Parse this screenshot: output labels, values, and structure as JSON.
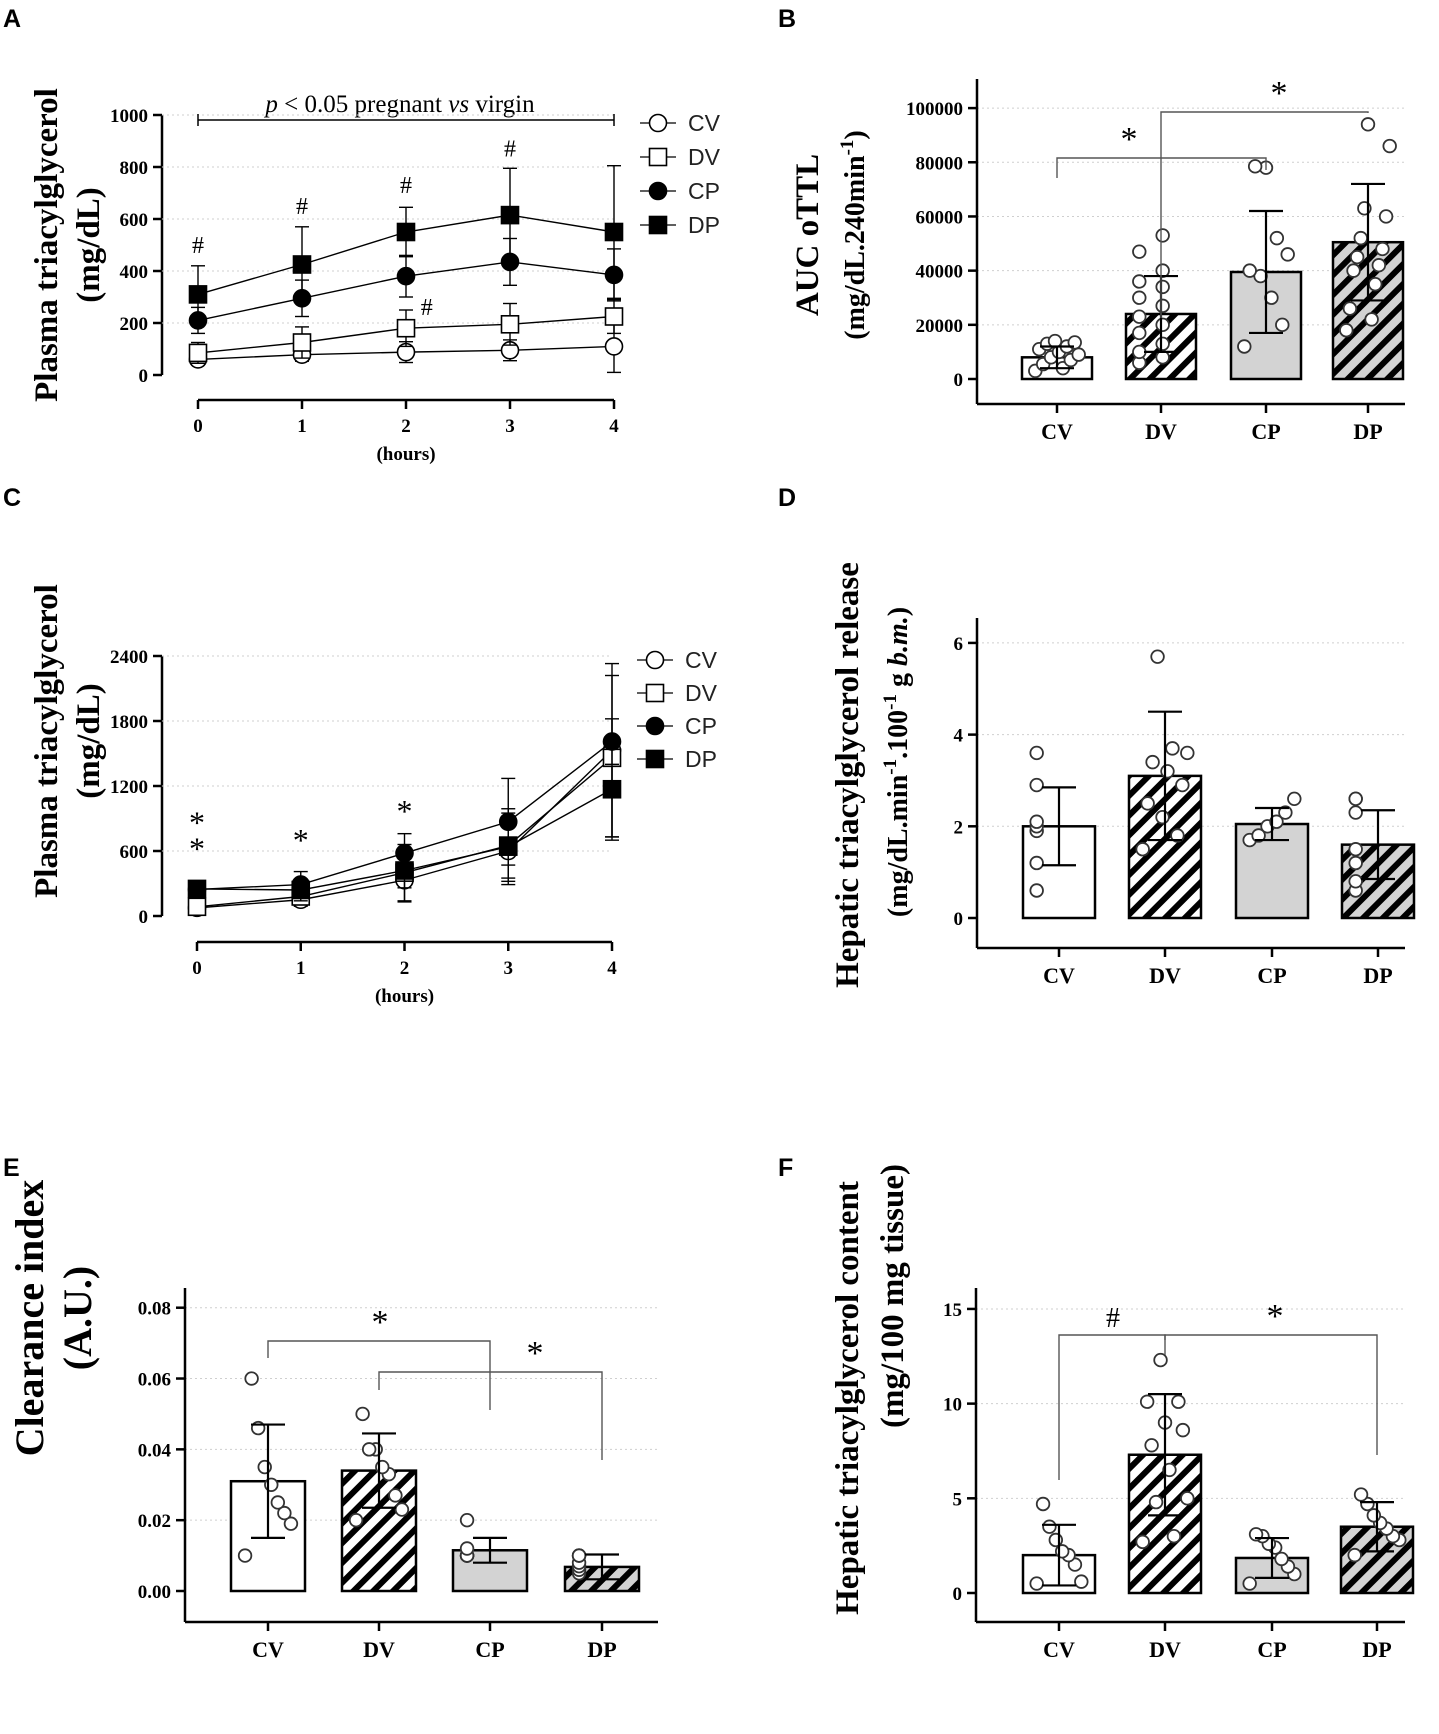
{
  "chart_data": [
    {
      "panel": "A",
      "type": "line",
      "ylabel": [
        "Plasma triacylglycerol",
        "(mg/dL)"
      ],
      "xlabel": "(hours)",
      "x": [
        0,
        1,
        2,
        3,
        4
      ],
      "ylim": [
        0,
        1000
      ],
      "yticks": [
        0,
        200,
        400,
        600,
        800,
        1000
      ],
      "bracket_label": {
        "p": "p",
        "mid": " < 0.05 pregnant ",
        "vs": "vs",
        "end": " virgin"
      },
      "series": [
        {
          "name": "CV",
          "marker": "circle-open",
          "values": [
            60,
            78,
            88,
            95,
            110
          ],
          "err": [
            20,
            25,
            40,
            40,
            100
          ]
        },
        {
          "name": "DV",
          "marker": "square-open",
          "values": [
            85,
            125,
            180,
            195,
            225
          ],
          "err": [
            40,
            60,
            70,
            80,
            65
          ]
        },
        {
          "name": "CP",
          "marker": "circle-filled",
          "values": [
            210,
            295,
            380,
            435,
            385
          ],
          "err": [
            50,
            70,
            80,
            90,
            100
          ]
        },
        {
          "name": "DP",
          "marker": "square-filled",
          "values": [
            310,
            425,
            550,
            615,
            550
          ],
          "err": [
            110,
            145,
            95,
            180,
            255
          ]
        }
      ],
      "annotations": [
        {
          "text": "#",
          "x": 0,
          "y": 470
        },
        {
          "text": "#",
          "x": 1,
          "y": 620
        },
        {
          "text": "#",
          "x": 2,
          "y": 700
        },
        {
          "text": "#",
          "x": 3,
          "y": 840
        },
        {
          "text": "#",
          "x": 2.2,
          "y": 230
        }
      ]
    },
    {
      "panel": "B",
      "type": "bar",
      "ylabel": [
        "AUC oTTL",
        "(mg/dL.240min",
        "-1",
        ")"
      ],
      "categories": [
        "CV",
        "DV",
        "CP",
        "DP"
      ],
      "patterns": [
        "white",
        "hatch-white",
        "gray",
        "hatch-gray"
      ],
      "values": [
        8000,
        24000,
        39500,
        50500
      ],
      "err": [
        4000,
        14000,
        22500,
        21500
      ],
      "ylim": [
        0,
        110000
      ],
      "yticks": [
        0,
        20000,
        40000,
        60000,
        80000,
        100000
      ],
      "points": [
        [
          3000,
          4000,
          5500,
          7000,
          8000,
          9000,
          10000,
          11000,
          12000,
          13000,
          13500,
          14000
        ],
        [
          6000,
          8000,
          10000,
          13000,
          17000,
          20000,
          23000,
          27000,
          30000,
          34000,
          36000,
          40000,
          47000,
          53000
        ],
        [
          12000,
          20000,
          30000,
          38000,
          40000,
          46000,
          52000,
          78000,
          78500
        ],
        [
          18000,
          22000,
          26000,
          35000,
          40000,
          42000,
          45000,
          48000,
          52000,
          60000,
          63000,
          86000,
          94000
        ]
      ],
      "brackets": [
        {
          "from": 0,
          "to": 2,
          "text": "*"
        },
        {
          "from": 1,
          "to": 3,
          "text": "*"
        }
      ]
    },
    {
      "panel": "C",
      "type": "line",
      "ylabel": [
        "Plasma triacylglycerol",
        "(mg/dL)"
      ],
      "xlabel": "(hours)",
      "x": [
        0,
        1,
        2,
        3,
        4
      ],
      "ylim": [
        0,
        2400
      ],
      "yticks": [
        0,
        600,
        1200,
        1800,
        2400
      ],
      "series": [
        {
          "name": "CV",
          "marker": "circle-open",
          "values": [
            75,
            150,
            330,
            600,
            1530
          ],
          "err": [
            20,
            60,
            200,
            280,
            800
          ]
        },
        {
          "name": "DV",
          "marker": "square-open",
          "values": [
            85,
            180,
            400,
            650,
            1460
          ],
          "err": [
            20,
            70,
            260,
            300,
            760
          ]
        },
        {
          "name": "CP",
          "marker": "circle-filled",
          "values": [
            245,
            290,
            580,
            870,
            1610
          ],
          "err": [
            30,
            120,
            180,
            400,
            210
          ]
        },
        {
          "name": "DP",
          "marker": "square-filled",
          "values": [
            250,
            240,
            420,
            640,
            1170
          ],
          "err": [
            30,
            100,
            160,
            350,
            440
          ]
        }
      ],
      "annotations": [
        {
          "text": "*",
          "x": 0,
          "y": 520
        },
        {
          "text": "*",
          "x": 0,
          "y": 760
        },
        {
          "text": "*",
          "x": 1,
          "y": 600
        },
        {
          "text": "*",
          "x": 2,
          "y": 870
        }
      ]
    },
    {
      "panel": "D",
      "type": "bar",
      "ylabel": [
        "Hepatic triacylglycerol release",
        "(mg/dL.min",
        "-1",
        ".100",
        "-1",
        " g ",
        "b.m.",
        ")"
      ],
      "categories": [
        "CV",
        "DV",
        "CP",
        "DP"
      ],
      "patterns": [
        "white",
        "hatch-white",
        "gray",
        "hatch-gray"
      ],
      "values": [
        2.0,
        3.1,
        2.05,
        1.6
      ],
      "err": [
        0.85,
        1.4,
        0.35,
        0.75
      ],
      "ylim": [
        0,
        6.5
      ],
      "yticks": [
        0,
        2,
        4,
        6
      ],
      "points": [
        [
          0.6,
          1.2,
          1.9,
          2.0,
          2.1,
          2.9,
          3.6
        ],
        [
          1.5,
          1.8,
          2.2,
          2.5,
          2.9,
          3.2,
          3.4,
          3.6,
          3.7,
          5.7
        ],
        [
          1.7,
          1.8,
          2.0,
          2.1,
          2.3,
          2.6
        ],
        [
          0.6,
          0.8,
          1.2,
          1.5,
          2.3,
          2.6,
          2.6
        ]
      ],
      "brackets": []
    },
    {
      "panel": "E",
      "type": "bar",
      "ylabel": [
        "Clearance index",
        "(A.U.)"
      ],
      "categories": [
        "CV",
        "DV",
        "CP",
        "DP"
      ],
      "patterns": [
        "white",
        "hatch-white",
        "gray",
        "hatch-gray"
      ],
      "values": [
        0.031,
        0.034,
        0.0115,
        0.0068
      ],
      "err": [
        0.016,
        0.0105,
        0.0035,
        0.0035
      ],
      "ylim": [
        0,
        0.085
      ],
      "yticks": [
        0,
        0.02,
        0.04,
        0.06,
        0.08
      ],
      "ytick_labels": [
        "0.00",
        "0.02",
        "0.04",
        "0.06",
        "0.08"
      ],
      "points": [
        [
          0.01,
          0.019,
          0.022,
          0.025,
          0.03,
          0.035,
          0.046,
          0.06
        ],
        [
          0.02,
          0.023,
          0.027,
          0.033,
          0.035,
          0.04,
          0.04,
          0.05
        ],
        [
          0.01,
          0.01,
          0.01,
          0.01,
          0.01,
          0.012,
          0.02
        ],
        [
          0.005,
          0.006,
          0.007,
          0.008,
          0.01,
          0.01,
          0.01
        ]
      ],
      "brackets": [
        {
          "from": 0,
          "to": 2,
          "text": "*"
        },
        {
          "from": 1,
          "to": 3,
          "text": "*"
        }
      ]
    },
    {
      "panel": "F",
      "type": "bar",
      "ylabel": [
        "Hepatic triacylglycerol content",
        "(mg/100 mg tissue)"
      ],
      "categories": [
        "CV",
        "DV",
        "CP",
        "DP"
      ],
      "patterns": [
        "white",
        "hatch-white",
        "gray",
        "hatch-gray"
      ],
      "values": [
        2.0,
        7.3,
        1.85,
        3.5
      ],
      "err": [
        1.6,
        3.2,
        1.05,
        1.3
      ],
      "ylim": [
        0,
        16
      ],
      "yticks": [
        0,
        5,
        10,
        15
      ],
      "points": [
        [
          0.5,
          0.6,
          1.5,
          2.0,
          2.2,
          2.8,
          3.5,
          4.7
        ],
        [
          2.7,
          3.0,
          4.8,
          5.0,
          6.5,
          7.8,
          8.6,
          9.0,
          10.1,
          10.1,
          12.3
        ],
        [
          0.5,
          1.0,
          1.4,
          1.8,
          2.4,
          2.6,
          3.0,
          3.1
        ],
        [
          2.0,
          2.8,
          3.0,
          3.4,
          3.7,
          4.1,
          4.7,
          5.2
        ]
      ],
      "brackets": [
        {
          "from": 0,
          "to": 1,
          "text": "#"
        },
        {
          "from": 1,
          "to": 3,
          "text": "*"
        }
      ]
    }
  ]
}
